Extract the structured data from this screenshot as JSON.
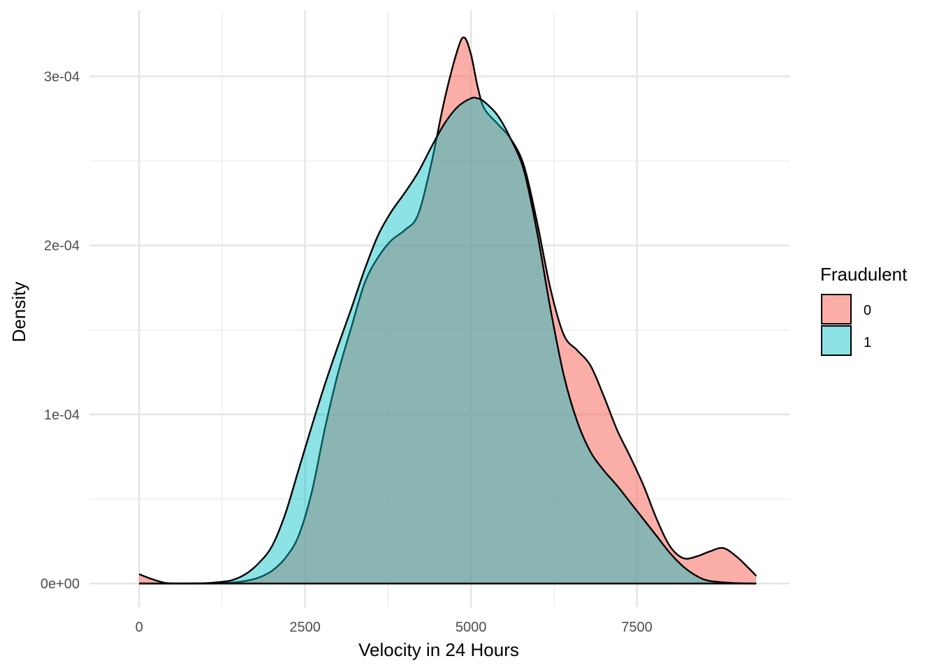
{
  "chart_data": {
    "type": "area",
    "subtype": "density",
    "title": "",
    "xlabel": "Velocity in 24 Hours",
    "ylabel": "Density",
    "xlim": [
      -750,
      9800
    ],
    "ylim": [
      -1.4e-05,
      0.000339
    ],
    "x_ticks": [
      0,
      2500,
      5000,
      7500
    ],
    "x_tick_labels": [
      "0",
      "2500",
      "5000",
      "7500"
    ],
    "x_minor_ticks": [
      1250,
      3750,
      6250
    ],
    "y_ticks": [
      0,
      0.0001,
      0.0002,
      0.0003
    ],
    "y_tick_labels": [
      "0e+00",
      "1e-04",
      "2e-04",
      "3e-04"
    ],
    "y_minor_ticks": [
      5e-05,
      0.00015,
      0.00025
    ],
    "grid": true,
    "legend": {
      "title": "Fraudulent",
      "position": "right"
    },
    "series": [
      {
        "name": "0",
        "color": "#F8766D",
        "opacity": 0.6,
        "x": [
          0,
          200,
          400,
          600,
          1000,
          1400,
          1600,
          1800,
          2000,
          2200,
          2400,
          2600,
          2800,
          3000,
          3200,
          3400,
          3600,
          3800,
          4000,
          4200,
          4400,
          4600,
          4800,
          4900,
          5000,
          5100,
          5200,
          5400,
          5600,
          5800,
          6000,
          6200,
          6400,
          6600,
          6800,
          7000,
          7200,
          7400,
          7600,
          7800,
          8000,
          8200,
          8400,
          8600,
          8800,
          9000,
          9200,
          9300
        ],
        "y": [
          5.5e-06,
          2.5e-06,
          3e-07,
          0.0,
          0.0,
          6e-07,
          1.5e-06,
          3.5e-06,
          7.5e-06,
          1.5e-05,
          2.8e-05,
          5.4e-05,
          9.2e-05,
          0.000125,
          0.000152,
          0.000178,
          0.000193,
          0.000203,
          0.000209,
          0.000218,
          0.000248,
          0.000286,
          0.000316,
          0.000323,
          0.000313,
          0.000294,
          0.000281,
          0.000272,
          0.000263,
          0.000247,
          0.000213,
          0.000174,
          0.000147,
          0.000138,
          0.000129,
          0.000111,
          9.1e-05,
          7.5e-05,
          5.8e-05,
          3.8e-05,
          2.2e-05,
          1.5e-05,
          1.6e-05,
          1.9e-05,
          2.1e-05,
          1.6e-05,
          8.5e-06,
          4.5e-06
        ]
      },
      {
        "name": "1",
        "color": "#00BFC4",
        "opacity": 0.45,
        "x": [
          0,
          400,
          600,
          1000,
          1200,
          1400,
          1600,
          1800,
          2000,
          2200,
          2400,
          2600,
          2800,
          3000,
          3200,
          3400,
          3600,
          3800,
          4000,
          4200,
          4400,
          4600,
          4800,
          5000,
          5100,
          5200,
          5400,
          5600,
          5800,
          6000,
          6200,
          6400,
          6600,
          6800,
          7000,
          7200,
          7400,
          7600,
          7800,
          8000,
          8200,
          8400,
          8600,
          9000,
          9300
        ],
        "y": [
          0.0,
          0.0,
          0.0,
          2e-07,
          8e-07,
          2e-06,
          5.5e-06,
          1.2e-05,
          2.2e-05,
          4.1e-05,
          6.7e-05,
          9.3e-05,
          0.000118,
          0.000141,
          0.000163,
          0.000186,
          0.000206,
          0.00022,
          0.000231,
          0.000243,
          0.000258,
          0.000272,
          0.000282,
          0.000287,
          0.000287,
          0.000285,
          0.000277,
          0.000263,
          0.000244,
          0.000207,
          0.000162,
          0.000123,
          9.6e-05,
          7.8e-05,
          6.7e-05,
          5.8e-05,
          4.8e-05,
          3.8e-05,
          2.8e-05,
          1.8e-05,
          1e-05,
          4.5e-06,
          1.5e-06,
          2e-07,
          0.0
        ]
      }
    ]
  }
}
